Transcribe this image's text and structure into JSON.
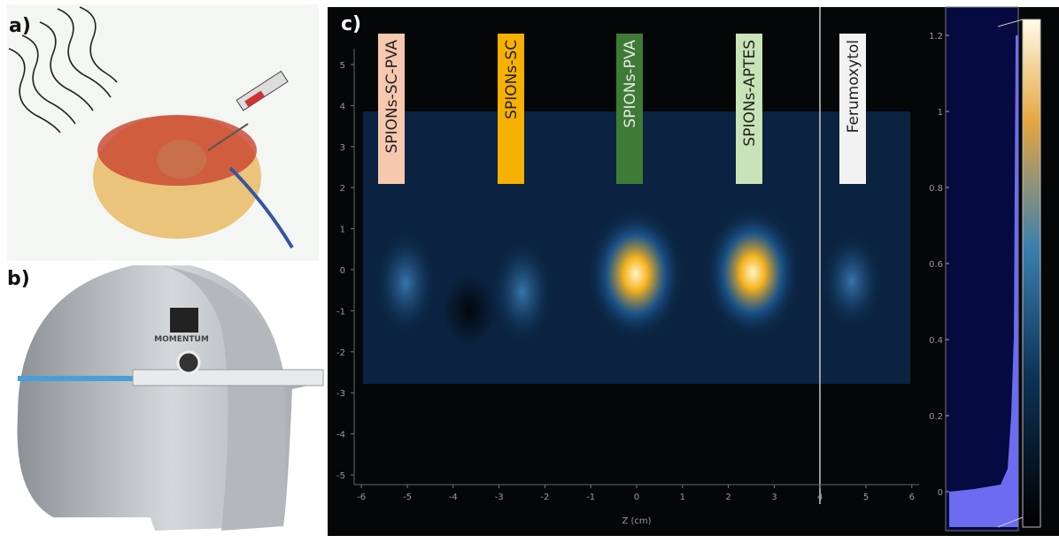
{
  "panels": [
    {
      "label": "a)"
    },
    {
      "label": "b)",
      "device_text": "MOMENTUM"
    },
    {
      "label": "c)",
      "xlabel": "Z (cm)",
      "xticks": [
        -6,
        -5,
        -4,
        -3,
        -2,
        -1,
        0,
        1,
        2,
        3,
        4,
        5,
        6
      ],
      "yticks": [
        -5,
        -4,
        -3,
        -2,
        -1,
        0,
        1,
        2,
        3,
        4,
        5
      ],
      "samples": [
        {
          "name": "SPIONs-SC-PVA",
          "color": "#f6c8ad",
          "text_color": "#222222"
        },
        {
          "name": "SPIONs-SC",
          "color": "#f7b100",
          "text_color": "#222222"
        },
        {
          "name": "SPIONs-PVA",
          "color": "#3e7c35",
          "text_color": "#e8e8e8"
        },
        {
          "name": "SPIONs-APTES",
          "color": "#c7e3b7",
          "text_color": "#222222"
        },
        {
          "name": "Ferumoxytol",
          "color": "#f2f2f2",
          "text_color": "#222222"
        }
      ],
      "colorbar_ticks": [
        0,
        0.2,
        0.4,
        0.6,
        0.8,
        1,
        1.2
      ]
    }
  ]
}
